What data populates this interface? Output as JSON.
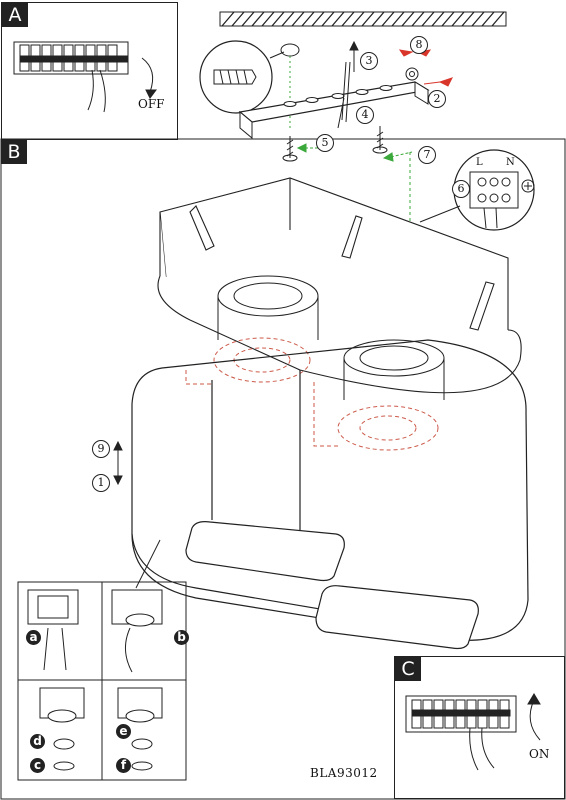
{
  "panels": {
    "a": {
      "letter": "A",
      "action": "OFF"
    },
    "b": {
      "letter": "B"
    },
    "c": {
      "letter": "C",
      "action": "ON"
    }
  },
  "steps": [
    "1",
    "2",
    "3",
    "4",
    "5",
    "6",
    "7",
    "8",
    "9"
  ],
  "substeps": [
    "a",
    "b",
    "c",
    "d",
    "e",
    "f"
  ],
  "terminal_labels": [
    "L",
    "N"
  ],
  "model_code": "BLA93012",
  "colors": {
    "line": "#222222",
    "accent_red": "#d9362b",
    "accent_green": "#3aa83a",
    "dashed_red": "#cc5a4a"
  }
}
